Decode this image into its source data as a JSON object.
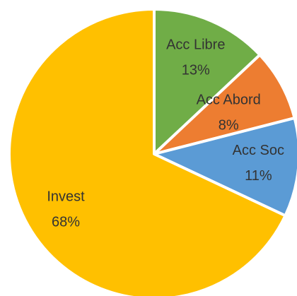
{
  "chart_data": {
    "type": "pie",
    "categories": [
      "Acc Libre",
      "Acc Abord",
      "Acc Soc",
      "Invest"
    ],
    "values": [
      13,
      8,
      11,
      68
    ],
    "value_labels": [
      "13%",
      "8%",
      "11%",
      "68%"
    ],
    "colors": [
      "#70ad47",
      "#ed7d31",
      "#5b9bd5",
      "#ffc000"
    ]
  }
}
